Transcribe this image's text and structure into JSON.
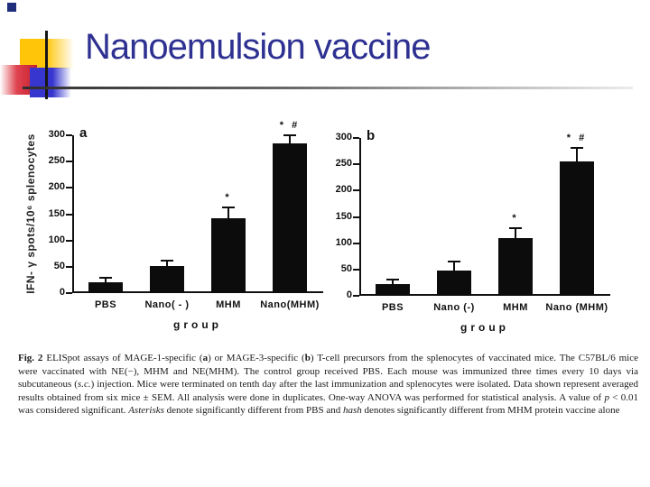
{
  "slide": {
    "title": "Nanoemulsion vaccine"
  },
  "theme": {
    "title_color": "#2e3191",
    "bar_color": "#0c0c0c",
    "accent_yellow": "#ffc609",
    "accent_blue": "#3737cf",
    "accent_red": "#c81f2e"
  },
  "chart_data": [
    {
      "type": "bar",
      "panel": "a",
      "categories": [
        "PBS",
        "Nano( - )",
        "MHM",
        "Nano(MHM)"
      ],
      "values": [
        20,
        51,
        143,
        285
      ],
      "errors": [
        8,
        9,
        19,
        14
      ],
      "annotations": [
        "",
        "",
        "*",
        "* #"
      ],
      "xlabel": "group",
      "ylabel": "IFN- γ spots/10⁶ splenocytes",
      "yticks": [
        0,
        50,
        100,
        150,
        200,
        250,
        300
      ],
      "ylim": [
        0,
        300
      ],
      "grid": false,
      "legend": "none"
    },
    {
      "type": "bar",
      "panel": "b",
      "categories": [
        "PBS",
        "Nano (-)",
        "MHM",
        "Nano (MHM)"
      ],
      "values": [
        22,
        48,
        110,
        255
      ],
      "errors": [
        8,
        15,
        17,
        25
      ],
      "annotations": [
        "",
        "",
        "*",
        "* #"
      ],
      "xlabel": "group",
      "ylabel": "",
      "yticks": [
        0,
        50,
        100,
        150,
        200,
        250,
        300
      ],
      "ylim": [
        0,
        300
      ],
      "grid": false,
      "legend": "none"
    }
  ],
  "caption": {
    "segments": [
      {
        "t": "Fig. 2 ",
        "b": 1
      },
      {
        "t": "ELISpot assays of MAGE-1-specific ("
      },
      {
        "t": "a",
        "b": 1
      },
      {
        "t": ") or MAGE-3-specific ("
      },
      {
        "t": "b",
        "b": 1
      },
      {
        "t": ") T-cell precursors from the splenocytes of vaccinated mice. The C57BL/6 mice were vaccinated with NE(−), MHM and NE(MHM). The control group received PBS. Each mouse was immunized three times every 10 days via subcutaneous ("
      },
      {
        "t": "s.c.",
        "i": 1
      },
      {
        "t": ") injection. Mice were terminated on tenth day after the last immunization and splenocytes were isolated. Data shown represent averaged results obtained from six mice ± SEM. All analysis were done in duplicates. One-way ANOVA was performed for statistical analysis. A value of "
      },
      {
        "t": "p",
        "i": 1
      },
      {
        "t": " < 0.01 was considered significant. "
      },
      {
        "t": "Asterisks",
        "i": 1
      },
      {
        "t": " denote significantly different from PBS and "
      },
      {
        "t": "hash",
        "i": 1
      },
      {
        "t": " denotes significantly different from MHM protein vaccine alone"
      }
    ]
  }
}
